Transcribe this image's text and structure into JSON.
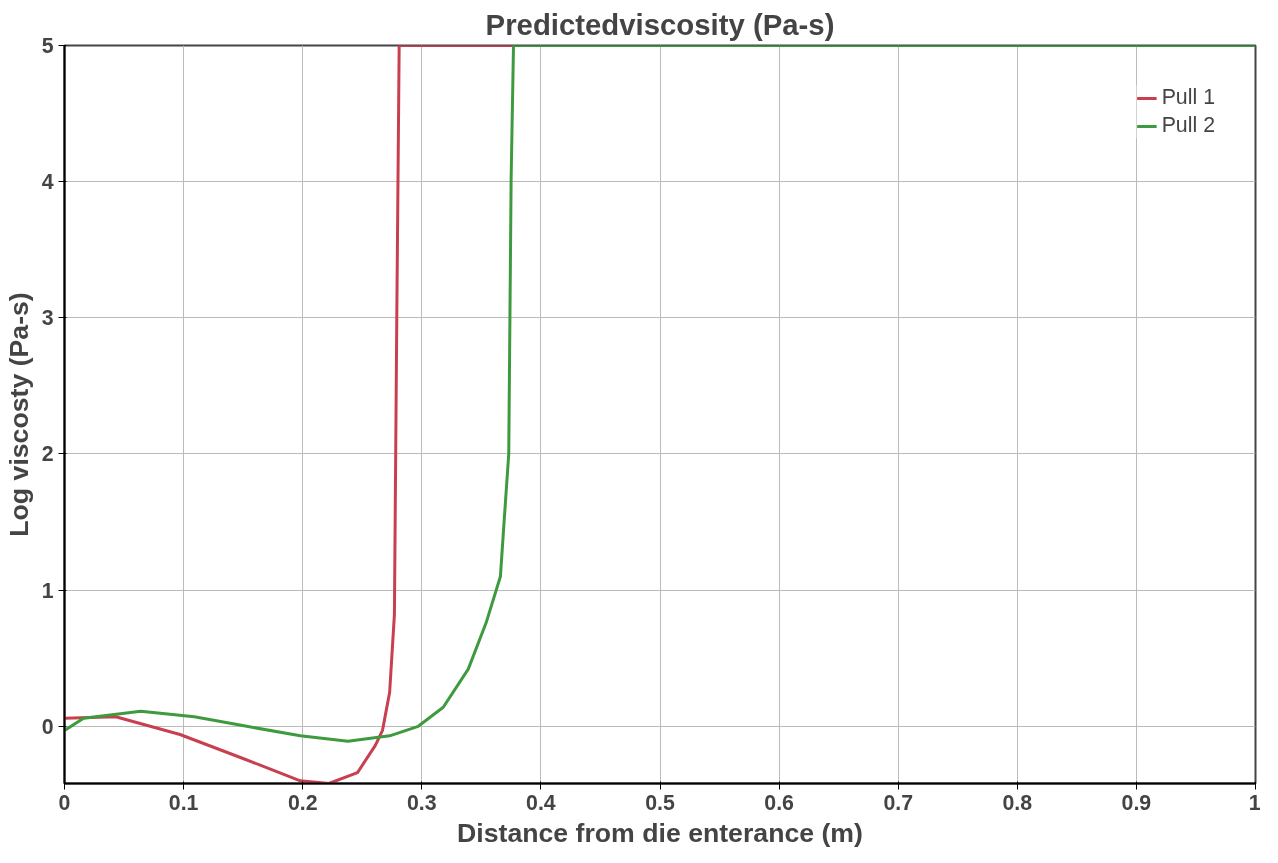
{
  "chart_data": {
    "type": "line",
    "title": "Predictedviscosity (Pa-s)",
    "xlabel": "Distance from die enterance (m)",
    "ylabel": "Log viscosty (Pa-s)",
    "xlim": [
      0,
      1
    ],
    "ylim": [
      -0.42,
      5
    ],
    "xticks": [
      0,
      0.1,
      0.2,
      0.3,
      0.4,
      0.5,
      0.6,
      0.7,
      0.8,
      0.9,
      1
    ],
    "yticks": [
      0,
      1,
      2,
      3,
      4,
      5
    ],
    "grid": true,
    "legend": "top right",
    "line_style": "solid",
    "marker": "none",
    "series": [
      {
        "name": "Pull 1",
        "color": "#c8404f",
        "x": [
          0,
          0.043,
          0.097,
          0.151,
          0.198,
          0.222,
          0.246,
          0.261,
          0.267,
          0.273,
          0.277,
          0.279,
          0.281,
          0.377
        ],
        "values": [
          0.06,
          0.07,
          -0.06,
          -0.24,
          -0.4,
          -0.42,
          -0.34,
          -0.14,
          -0.03,
          0.25,
          0.82,
          3,
          5,
          5
        ]
      },
      {
        "name": "Pull 2",
        "color": "#3e9a3e",
        "x": [
          0,
          0.016,
          0.064,
          0.109,
          0.153,
          0.198,
          0.238,
          0.273,
          0.297,
          0.318,
          0.339,
          0.354,
          0.366,
          0.369,
          0.373,
          0.375,
          0.377,
          0.5,
          0.7,
          1
        ],
        "values": [
          -0.03,
          0.06,
          0.11,
          0.07,
          0,
          -0.07,
          -0.11,
          -0.07,
          0,
          0.14,
          0.42,
          0.76,
          1.1,
          1.49,
          2,
          4.02,
          5,
          5,
          5,
          5
        ]
      }
    ]
  }
}
